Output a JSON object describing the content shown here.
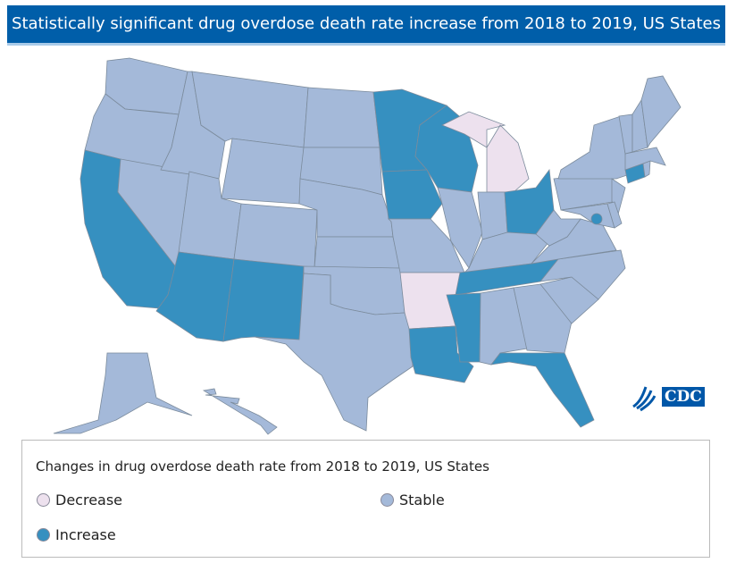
{
  "header": {
    "title": "Statistically significant drug overdose death rate increase from 2018 to 2019, US States"
  },
  "colors": {
    "decrease": "#ede1ee",
    "stable": "#a4b9d9",
    "increase": "#3690c0",
    "header": "#005ea9"
  },
  "states": {
    "WA": "stable",
    "OR": "stable",
    "CA": "increase",
    "NV": "stable",
    "ID": "stable",
    "MT": "stable",
    "WY": "stable",
    "UT": "stable",
    "AZ": "increase",
    "CO": "stable",
    "NM": "increase",
    "ND": "stable",
    "SD": "stable",
    "NE": "stable",
    "KS": "stable",
    "OK": "stable",
    "TX": "stable",
    "MN": "increase",
    "IA": "increase",
    "MO": "stable",
    "AR": "decrease",
    "LA": "increase",
    "WI": "increase",
    "IL": "stable",
    "MI": "decrease",
    "IN": "stable",
    "OH": "increase",
    "KY": "stable",
    "TN": "increase",
    "MS": "increase",
    "AL": "stable",
    "GA": "stable",
    "FL": "increase",
    "SC": "stable",
    "NC": "stable",
    "VA": "stable",
    "WV": "stable",
    "PA": "stable",
    "NY": "stable",
    "NJ": "stable",
    "MD": "stable",
    "DE": "stable",
    "CT": "increase",
    "RI": "stable",
    "MA": "stable",
    "VT": "stable",
    "NH": "stable",
    "ME": "stable",
    "AK": "stable",
    "HI": "stable",
    "DC": "increase"
  },
  "logo": {
    "text": "CDC"
  },
  "legend": {
    "title": "Changes in drug overdose death rate from 2018 to 2019, US States",
    "decrease": "Decrease",
    "stable": "Stable",
    "increase": "Increase"
  }
}
